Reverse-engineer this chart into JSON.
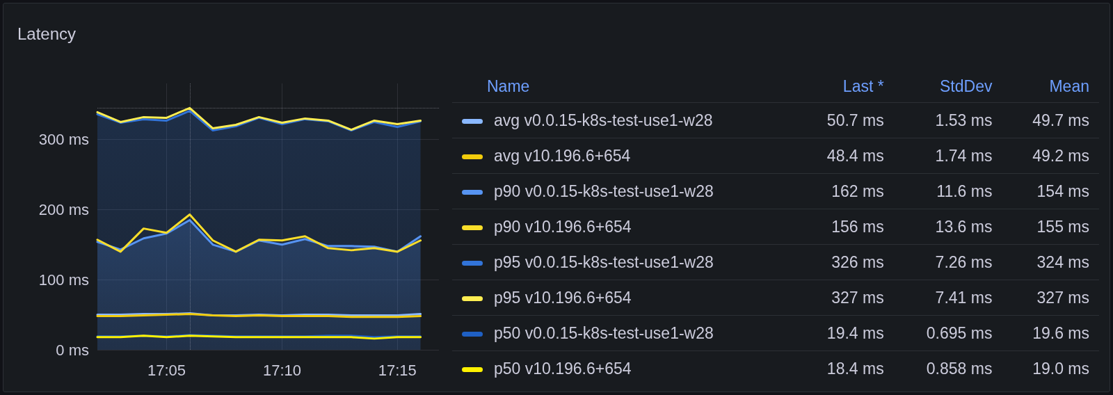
{
  "chart_data": {
    "type": "area",
    "title": "Latency",
    "x": [
      17.0333,
      17.05,
      17.0667,
      17.0833,
      17.1,
      17.1167,
      17.1333,
      17.15,
      17.1667,
      17.1833,
      17.2,
      17.2167,
      17.2333,
      17.25,
      17.2667
    ],
    "xlim": [
      17.0333,
      17.28
    ],
    "xticks": [
      {
        "value": 17.0833,
        "label": "17:05"
      },
      {
        "value": 17.1667,
        "label": "17:10"
      },
      {
        "value": 17.25,
        "label": "17:15"
      }
    ],
    "ylim": [
      0,
      380
    ],
    "yticks": [
      {
        "value": 0,
        "label": "0 ms"
      },
      {
        "value": 100,
        "label": "100 ms"
      },
      {
        "value": 200,
        "label": "200 ms"
      },
      {
        "value": 300,
        "label": "300 ms"
      }
    ],
    "series": [
      {
        "name": "avg v0.0.15-k8s-test-use1-w28",
        "type": "line",
        "color": "#8ab8ff",
        "values": [
          50,
          50,
          51,
          51,
          52,
          49,
          49,
          50,
          49,
          50,
          50,
          49,
          49,
          49,
          51
        ]
      },
      {
        "name": "avg v10.196.6+654",
        "type": "line",
        "color": "#f2cc0c",
        "values": [
          48,
          48,
          49,
          50,
          51,
          49,
          48,
          49,
          48,
          48,
          48,
          47,
          47,
          47,
          48
        ]
      },
      {
        "name": "p90 v0.0.15-k8s-test-use1-w28",
        "color": "#5794f2",
        "values": [
          154,
          143,
          159,
          166,
          185,
          150,
          140,
          156,
          150,
          158,
          148,
          148,
          147,
          140,
          162
        ]
      },
      {
        "name": "p90 v10.196.6+654",
        "type": "line",
        "color": "#fade2a",
        "values": [
          157,
          140,
          173,
          167,
          193,
          156,
          140,
          157,
          156,
          162,
          145,
          142,
          145,
          140,
          156
        ]
      },
      {
        "name": "p95 v0.0.15-k8s-test-use1-w28",
        "color": "#3274d9",
        "values": [
          336,
          324,
          329,
          327,
          341,
          313,
          319,
          331,
          322,
          329,
          326,
          313,
          325,
          318,
          326
        ]
      },
      {
        "name": "p95 v10.196.6+654",
        "type": "line",
        "color": "#ffee52",
        "values": [
          339,
          325,
          332,
          331,
          345,
          316,
          321,
          332,
          324,
          330,
          327,
          314,
          327,
          322,
          327
        ]
      },
      {
        "name": "p50 v0.0.15-k8s-test-use1-w28",
        "type": "line",
        "color": "#1f60c4",
        "values": [
          19,
          19,
          20,
          19,
          21,
          20,
          19,
          19,
          19,
          19,
          20,
          20,
          18,
          19,
          19
        ]
      },
      {
        "name": "p50 v10.196.6+654",
        "type": "line",
        "color": "#fff200",
        "values": [
          18,
          18,
          20,
          18,
          20,
          19,
          18,
          18,
          18,
          18,
          18,
          18,
          16,
          18,
          18
        ]
      }
    ],
    "annotations": [
      "Name",
      "Last *",
      "StdDev",
      "Mean",
      "50.7 ms",
      "1.53 ms",
      "49.7 ms",
      "48.4 ms",
      "1.74 ms",
      "49.2 ms",
      "162 ms",
      "11.6 ms",
      "154 ms",
      "156 ms",
      "13.6 ms",
      "155 ms",
      "326 ms",
      "7.26 ms",
      "324 ms",
      "327 ms",
      "7.41 ms",
      "327 ms",
      "19.4 ms",
      "0.695 ms",
      "19.6 ms",
      "18.4 ms",
      "0.858 ms",
      "19.0 ms"
    ],
    "ref_lines": [
      {
        "axis": "x",
        "value": 17.1,
        "line_style": "dotted"
      },
      {
        "axis": "y",
        "value": 345,
        "line_style": "dotted"
      }
    ],
    "grid": true,
    "legend": "right",
    "marker": "none"
  }
}
